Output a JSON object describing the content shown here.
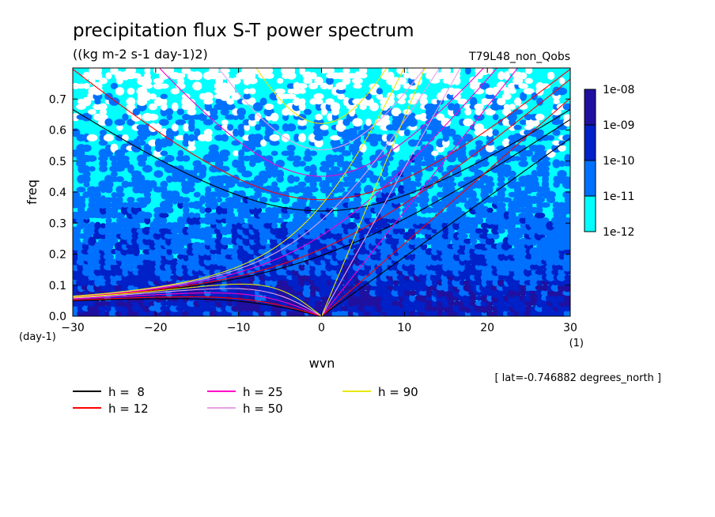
{
  "chart_data": {
    "type": "heatmap",
    "title": "precipitation flux S-T power spectrum",
    "subtitle": "((kg m-2 s-1 day-1)2)",
    "run_label": "T79L48_non_Qobs",
    "xlabel": "wvn",
    "ylabel": "freq",
    "x_unit": "(1)",
    "y_unit": "(day-1)",
    "lat_note": "[ lat=-0.746882 degrees_north ]",
    "xlim": [
      -30,
      30
    ],
    "ylim": [
      0,
      0.8
    ],
    "x_ticks": [
      -30,
      -20,
      -10,
      0,
      10,
      20,
      30
    ],
    "x_tick_labels": [
      "−30",
      "−20",
      "−10",
      "0",
      "10",
      "20",
      "30"
    ],
    "y_ticks": [
      0.0,
      0.1,
      0.2,
      0.3,
      0.4,
      0.5,
      0.6,
      0.7
    ],
    "y_tick_labels": [
      "0.0",
      "0.1",
      "0.2",
      "0.3",
      "0.4",
      "0.5",
      "0.6",
      "0.7"
    ],
    "colorbar": {
      "levels": [
        "1e-12",
        "1e-11",
        "1e-10",
        "1e-09",
        "1e-08"
      ],
      "colors": [
        "#00ffff",
        "#0070ff",
        "#0020c8",
        "#2010a0"
      ]
    },
    "grid": false,
    "legend_placement": "below-left",
    "series": [
      {
        "name": "h =  8",
        "h": 8,
        "color": "#000000"
      },
      {
        "name": "h = 12",
        "h": 12,
        "color": "#ff0000"
      },
      {
        "name": "h = 25",
        "h": 25,
        "color": "#ff00c8"
      },
      {
        "name": "h = 50",
        "h": 50,
        "color": "#e8a0e8"
      },
      {
        "name": "h = 90",
        "h": 90,
        "color": "#e8e800"
      }
    ]
  }
}
